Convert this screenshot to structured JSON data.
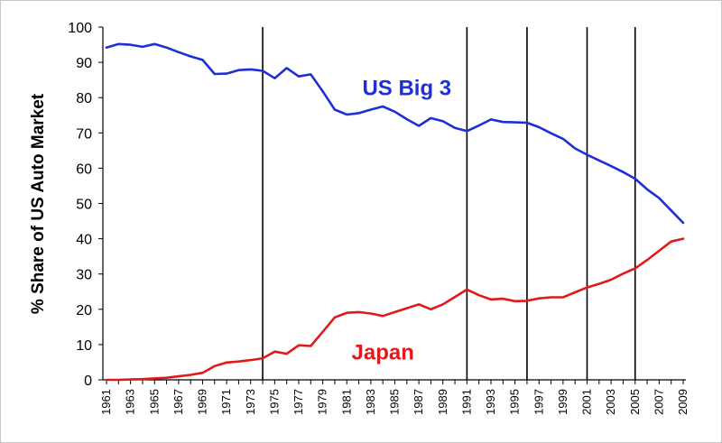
{
  "chart_data": {
    "type": "line",
    "title": "",
    "xlabel": "",
    "ylabel": "% Share of US Auto Market",
    "ylim": [
      0,
      100
    ],
    "yticks": [
      0,
      10,
      20,
      30,
      40,
      50,
      60,
      70,
      80,
      90,
      100
    ],
    "xlim": [
      1961,
      2009
    ],
    "xticks": [
      1961,
      1963,
      1965,
      1967,
      1969,
      1971,
      1973,
      1975,
      1977,
      1979,
      1981,
      1983,
      1985,
      1987,
      1989,
      1991,
      1993,
      1995,
      1997,
      1999,
      2001,
      2003,
      2005,
      2007,
      2009
    ],
    "grid": false,
    "vertical_markers": [
      1974,
      1991,
      1996,
      2001,
      2005
    ],
    "x": [
      1961,
      1962,
      1963,
      1964,
      1965,
      1966,
      1967,
      1968,
      1969,
      1970,
      1971,
      1972,
      1973,
      1974,
      1975,
      1976,
      1977,
      1978,
      1979,
      1980,
      1981,
      1982,
      1983,
      1984,
      1985,
      1986,
      1987,
      1988,
      1989,
      1990,
      1991,
      1992,
      1993,
      1994,
      1995,
      1996,
      1997,
      1998,
      1999,
      2000,
      2001,
      2002,
      2003,
      2004,
      2005,
      2006,
      2007,
      2008,
      2009
    ],
    "series": [
      {
        "name": "US Big 3",
        "color": "#1f2fd6",
        "values": [
          94.2,
          95.2,
          95.0,
          94.4,
          95.2,
          94.2,
          92.9,
          91.7,
          90.7,
          86.7,
          86.8,
          87.8,
          88.0,
          87.6,
          85.5,
          88.4,
          86.0,
          86.6,
          81.8,
          76.6,
          75.2,
          75.6,
          76.6,
          77.5,
          76.0,
          73.9,
          72.0,
          74.2,
          73.3,
          71.4,
          70.5,
          72.1,
          73.8,
          73.1,
          73.0,
          72.9,
          71.6,
          69.9,
          68.3,
          65.6,
          63.8,
          62.2,
          60.6,
          58.9,
          57.0,
          54.0,
          51.5,
          48.0,
          44.5
        ]
      },
      {
        "name": "Japan",
        "color": "#e01a1a",
        "values": [
          0.0,
          0.0,
          0.1,
          0.2,
          0.4,
          0.6,
          1.0,
          1.4,
          2.0,
          3.9,
          4.9,
          5.2,
          5.6,
          6.1,
          8.0,
          7.4,
          9.8,
          9.6,
          13.6,
          17.7,
          19.0,
          19.2,
          18.8,
          18.1,
          19.2,
          20.3,
          21.4,
          20.0,
          21.4,
          23.5,
          25.6,
          24.0,
          22.8,
          23.0,
          22.3,
          22.4,
          23.1,
          23.4,
          23.4,
          24.8,
          26.2,
          27.2,
          28.4,
          30.1,
          31.6,
          34.0,
          36.6,
          39.2,
          40.0
        ]
      }
    ],
    "annotations": [
      {
        "text": "US Big 3",
        "color": "#1f2fd6",
        "at": [
          1986,
          83
        ]
      },
      {
        "text": "Japan",
        "color": "#e01a1a",
        "at": [
          1984,
          8
        ]
      }
    ]
  }
}
